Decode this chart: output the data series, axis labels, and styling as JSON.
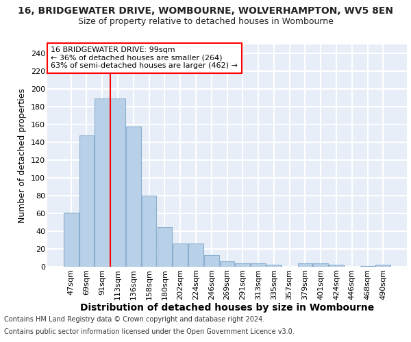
{
  "title_line1": "16, BRIDGEWATER DRIVE, WOMBOURNE, WOLVERHAMPTON, WV5 8EN",
  "title_line2": "Size of property relative to detached houses in Wombourne",
  "xlabel": "Distribution of detached houses by size in Wombourne",
  "ylabel": "Number of detached properties",
  "bar_color": "#b8d0e8",
  "bar_edge_color": "#8ab0d0",
  "categories": [
    "47sqm",
    "69sqm",
    "91sqm",
    "113sqm",
    "136sqm",
    "158sqm",
    "180sqm",
    "202sqm",
    "224sqm",
    "246sqm",
    "269sqm",
    "291sqm",
    "313sqm",
    "335sqm",
    "357sqm",
    "379sqm",
    "401sqm",
    "424sqm",
    "446sqm",
    "468sqm",
    "490sqm"
  ],
  "values": [
    61,
    148,
    189,
    189,
    158,
    80,
    45,
    26,
    26,
    13,
    6,
    4,
    4,
    2,
    0,
    4,
    4,
    2,
    0,
    1,
    2
  ],
  "ylim": [
    0,
    250
  ],
  "yticks": [
    0,
    20,
    40,
    60,
    80,
    100,
    120,
    140,
    160,
    180,
    200,
    220,
    240
  ],
  "annotation_line1": "16 BRIDGEWATER DRIVE: 99sqm",
  "annotation_line2": "← 36% of detached houses are smaller (264)",
  "annotation_line3": "63% of semi-detached houses are larger (462) →",
  "red_line_x": 2.5,
  "footer_line1": "Contains HM Land Registry data © Crown copyright and database right 2024.",
  "footer_line2": "Contains public sector information licensed under the Open Government Licence v3.0.",
  "background_color": "#e8eef8",
  "grid_color": "#ffffff",
  "title_fontsize": 10,
  "subtitle_fontsize": 9,
  "axis_label_fontsize": 9,
  "tick_fontsize": 8,
  "annotation_fontsize": 8,
  "footer_fontsize": 7
}
